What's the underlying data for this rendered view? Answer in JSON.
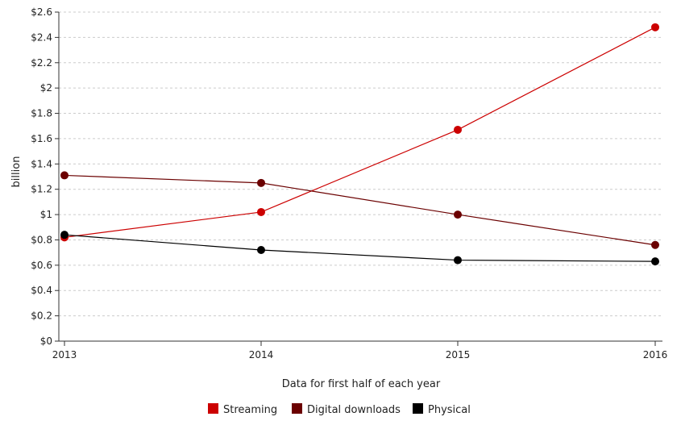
{
  "chart_data": {
    "type": "line",
    "title": "",
    "xlabel": "Data for first half of each year",
    "ylabel": "billion",
    "x": [
      "2013",
      "2014",
      "2015",
      "2016"
    ],
    "ylim": [
      0,
      2.6
    ],
    "yticks": [
      0,
      0.2,
      0.4,
      0.6,
      0.8,
      1,
      1.2,
      1.4,
      1.6,
      1.8,
      2,
      2.2,
      2.4,
      2.6
    ],
    "ytick_labels": [
      "$0",
      "$0.2",
      "$0.4",
      "$0.6",
      "$0.8",
      "$1",
      "$1.2",
      "$1.4",
      "$1.6",
      "$1.8",
      "$2",
      "$2.2",
      "$2.4",
      "$2.6"
    ],
    "grid": true,
    "legend_position": "bottom",
    "series": [
      {
        "name": "Streaming",
        "color": "#cc0000",
        "values": [
          0.82,
          1.02,
          1.67,
          2.48
        ]
      },
      {
        "name": "Digital downloads",
        "color": "#6b0000",
        "values": [
          1.31,
          1.25,
          1.0,
          0.76
        ]
      },
      {
        "name": "Physical",
        "color": "#000000",
        "values": [
          0.84,
          0.72,
          0.64,
          0.63
        ]
      }
    ]
  }
}
